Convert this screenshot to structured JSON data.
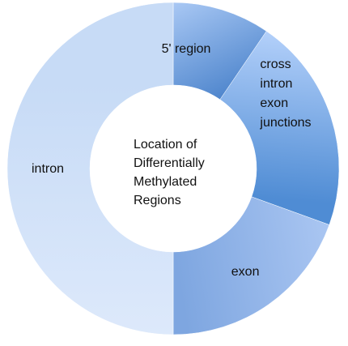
{
  "chart_data": {
    "type": "pie",
    "variant": "donut",
    "title": "",
    "center_label": [
      "Location of",
      "Differentially",
      "Methylated",
      "Regions"
    ],
    "categories": [
      "5' region",
      "cross intron exon junctions",
      "exon",
      "intron"
    ],
    "label_lines": [
      [
        "5' region"
      ],
      [
        "cross",
        "intron",
        "exon",
        "junctions"
      ],
      [
        "exon"
      ],
      [
        "intron"
      ]
    ],
    "values": [
      9.5,
      21,
      19.5,
      50
    ],
    "legend": "none",
    "grid": false,
    "colors": {
      "5' region": [
        "#a9c8f4",
        "#4f86cd"
      ],
      "cross intron exon junctions": [
        "#b3d0fa",
        "#4f8cd4"
      ],
      "exon": [
        "#aac6f2",
        "#7ea6e0"
      ],
      "intron": [
        "#dde9fb",
        "#c7dbf6"
      ]
    }
  }
}
